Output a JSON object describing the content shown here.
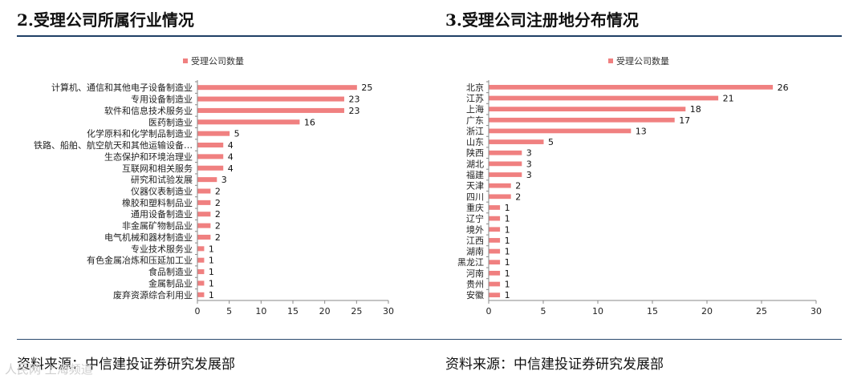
{
  "chart_data": [
    {
      "type": "bar",
      "orientation": "horizontal",
      "title": "2.受理公司所属行业情况",
      "legend": "受理公司数量",
      "categories": [
        "计算机、通信和其他电子设备制造业",
        "专用设备制造业",
        "软件和信息技术服务业",
        "医药制造业",
        "化学原料和化学制品制造业",
        "铁路、船舶、航空航天和其他运输设备…",
        "生态保护和环境治理业",
        "互联网和相关服务",
        "研究和试验发展",
        "仪器仪表制造业",
        "橡胶和塑料制品业",
        "通用设备制造业",
        "非金属矿物制品业",
        "电气机械和器材制造业",
        "专业技术服务业",
        "有色金属冶炼和压延加工业",
        "食品制造业",
        "金属制品业",
        "废弃资源综合利用业"
      ],
      "values": [
        25,
        23,
        23,
        16,
        5,
        4,
        4,
        4,
        3,
        2,
        2,
        2,
        2,
        2,
        1,
        1,
        1,
        1,
        1
      ],
      "xlim": [
        0,
        30
      ],
      "xticks": [
        "0",
        "5",
        "10",
        "15",
        "20",
        "25",
        "30"
      ],
      "source": "资料来源：中信建投证券研究发展部"
    },
    {
      "type": "bar",
      "orientation": "horizontal",
      "title": "3.受理公司注册地分布情况",
      "legend": "受理公司数量",
      "categories": [
        "北京",
        "江苏",
        "上海",
        "广东",
        "浙江",
        "山东",
        "陕西",
        "湖北",
        "福建",
        "天津",
        "四川",
        "重庆",
        "辽宁",
        "境外",
        "江西",
        "湖南",
        "黑龙江",
        "河南",
        "贵州",
        "安徽"
      ],
      "values": [
        26,
        21,
        18,
        17,
        13,
        5,
        3,
        3,
        3,
        2,
        2,
        1,
        1,
        1,
        1,
        1,
        1,
        1,
        1,
        1
      ],
      "xlim": [
        0,
        30
      ],
      "xticks": [
        "0",
        "5",
        "10",
        "15",
        "20",
        "25",
        "30"
      ],
      "source": "资料来源：中信建投证券研究发展部"
    }
  ],
  "colors": {
    "bar": "#f08080",
    "rule": "#1f3f66"
  },
  "watermark": "人民网·上海频道"
}
